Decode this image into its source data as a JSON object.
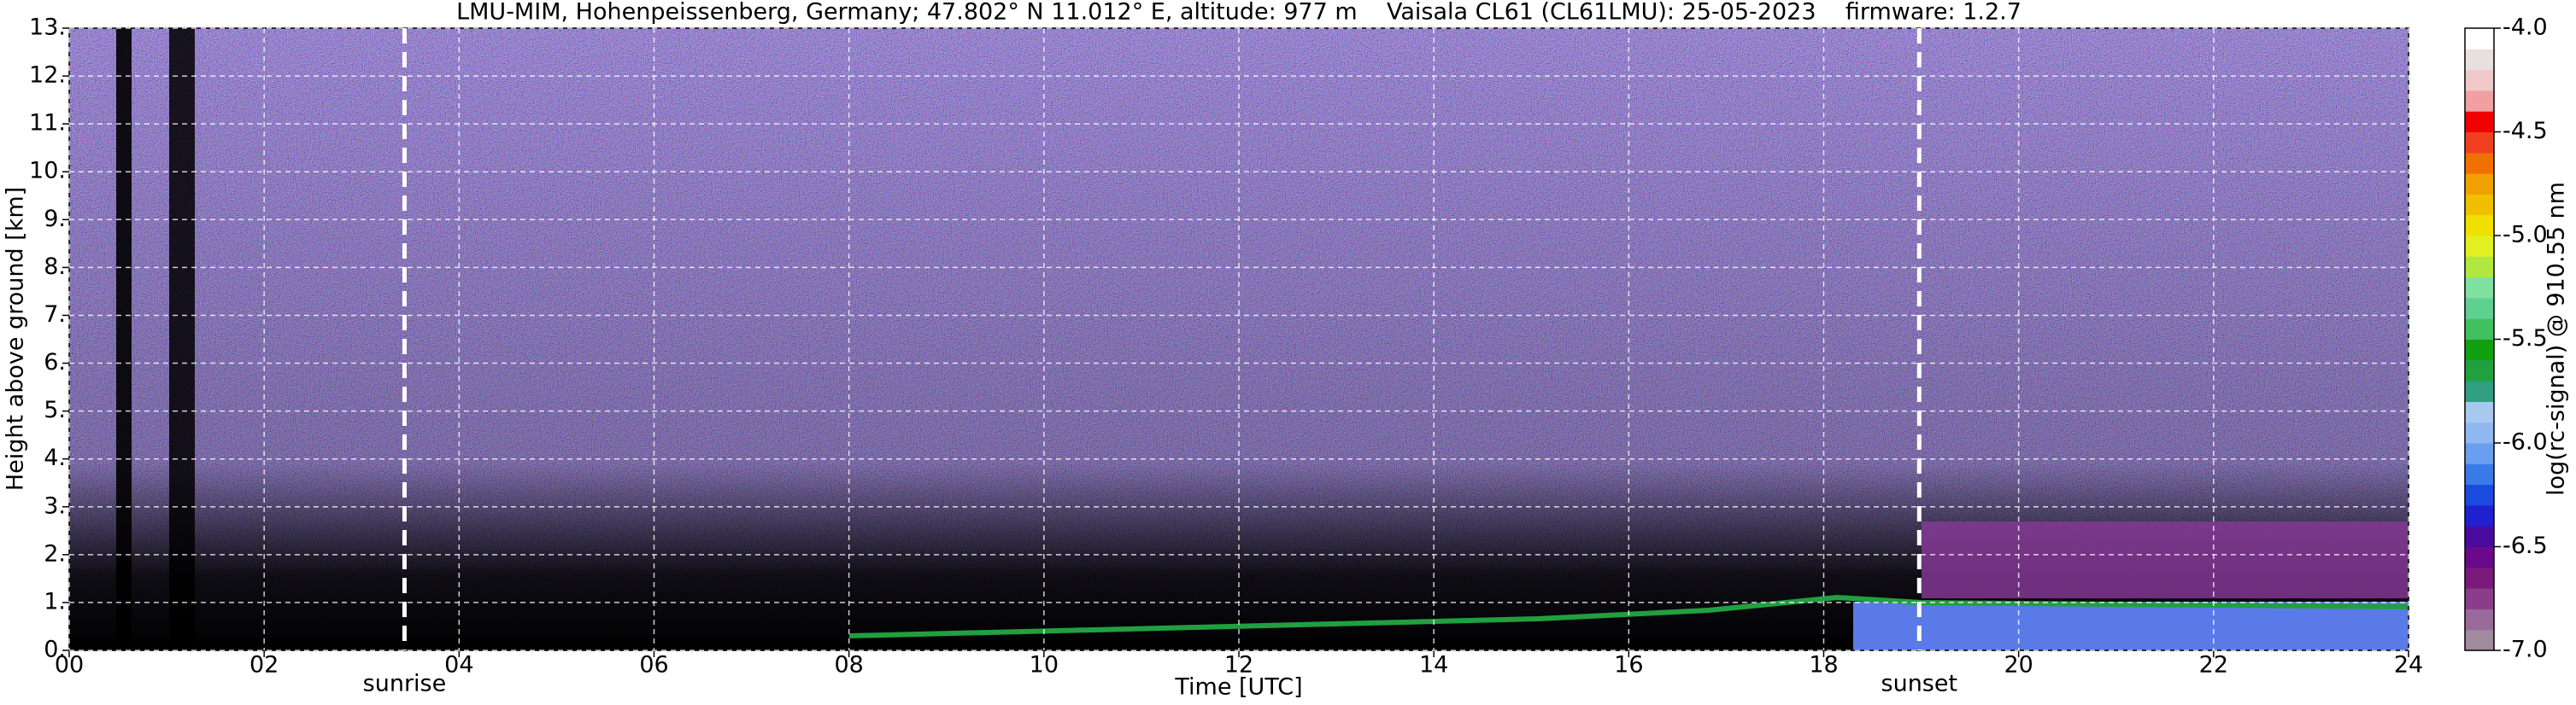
{
  "chart_data": {
    "type": "heatmap",
    "title": "LMU-MIM, Hohenpeissenberg, Germany; 47.802° N 11.012° E, altitude: 977 m    Vaisala CL61 (CL61LMU): 25-05-2023    firmware: 1.2.7",
    "x_label": "Time [UTC]",
    "y_label": "Height above ground [km]",
    "xlim": [
      0,
      24
    ],
    "xticks": [
      {
        "value": 0,
        "label": "00"
      },
      {
        "value": 2,
        "label": "02"
      },
      {
        "value": 4,
        "label": "04"
      },
      {
        "value": 6,
        "label": "06"
      },
      {
        "value": 8,
        "label": "08"
      },
      {
        "value": 10,
        "label": "10"
      },
      {
        "value": 12,
        "label": "12"
      },
      {
        "value": 14,
        "label": "14"
      },
      {
        "value": 16,
        "label": "16"
      },
      {
        "value": 18,
        "label": "18"
      },
      {
        "value": 20,
        "label": "20"
      },
      {
        "value": 22,
        "label": "22"
      },
      {
        "value": 24,
        "label": "24"
      }
    ],
    "ylim": [
      0,
      13
    ],
    "yticks": [
      {
        "value": 0,
        "label": "0."
      },
      {
        "value": 1,
        "label": "1."
      },
      {
        "value": 2,
        "label": "2."
      },
      {
        "value": 3,
        "label": "3."
      },
      {
        "value": 4,
        "label": "4."
      },
      {
        "value": 5,
        "label": "5."
      },
      {
        "value": 6,
        "label": "6."
      },
      {
        "value": 7,
        "label": "7."
      },
      {
        "value": 8,
        "label": "8."
      },
      {
        "value": 9,
        "label": "9."
      },
      {
        "value": 10,
        "label": "10."
      },
      {
        "value": 11,
        "label": "11."
      },
      {
        "value": 12,
        "label": "12."
      },
      {
        "value": 13,
        "label": "13."
      }
    ],
    "grid": true,
    "annotations": [
      {
        "text": "sunrise",
        "x": 3.44
      },
      {
        "text": "sunset",
        "x": 18.98
      }
    ],
    "colorbar": {
      "label": "log(rc-signal) @ 910.55 nm",
      "lim": [
        -7,
        -4
      ],
      "ticks": [
        {
          "value": -7,
          "label": "-7.0"
        },
        {
          "value": -6.5,
          "label": "-6.5"
        },
        {
          "value": -6,
          "label": "-6.0"
        },
        {
          "value": -5.5,
          "label": "-5.5"
        },
        {
          "value": -5,
          "label": "-5.0"
        },
        {
          "value": -4.5,
          "label": "-4.5"
        },
        {
          "value": -4,
          "label": "-4.0"
        }
      ],
      "colors": [
        "#a08aa0",
        "#9a6a9a",
        "#8b3d8b",
        "#7a1a7a",
        "#6a0a8a",
        "#4a0aa0",
        "#2020d0",
        "#1a4ae0",
        "#3a7ae8",
        "#6a9ef0",
        "#90b8f0",
        "#a8c8f0",
        "#30a080",
        "#20a040",
        "#10a010",
        "#40c060",
        "#60d090",
        "#80e0a0",
        "#b0e840",
        "#e0f020",
        "#f0e000",
        "#f0c000",
        "#f0a000",
        "#f07000",
        "#f04020",
        "#f00000",
        "#f0a0a0",
        "#f0c8c8",
        "#e8e0e0",
        "#ffffff"
      ]
    }
  }
}
